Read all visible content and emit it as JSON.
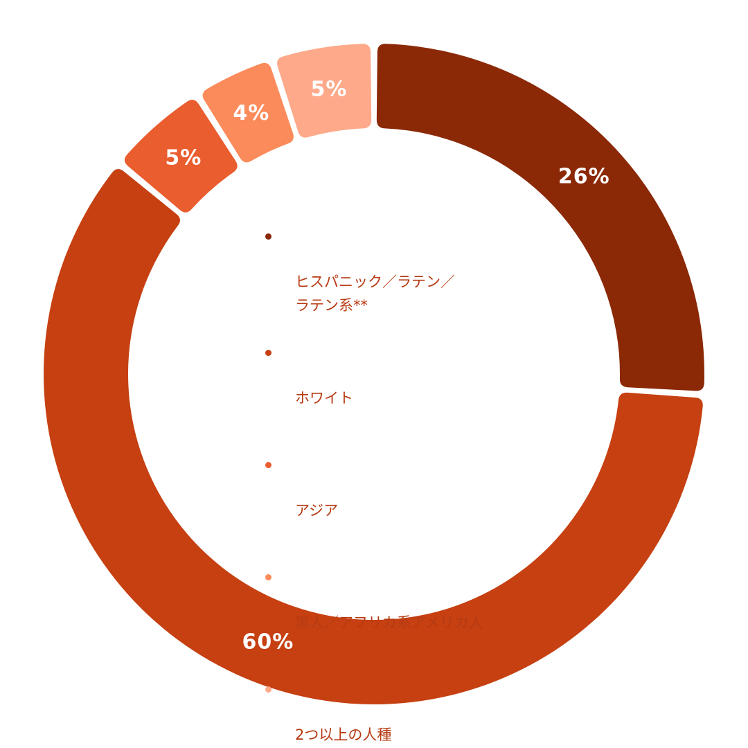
{
  "chart_data": {
    "type": "pie",
    "variant": "donut",
    "slices": [
      {
        "label": "ヒスパニック／ラテン／\nラテン系**",
        "value": 26,
        "value_label": "26%",
        "color": "#8b2907"
      },
      {
        "label": "ホワイト",
        "value": 60,
        "value_label": "60%",
        "color": "#c64012"
      },
      {
        "label": "アジア",
        "value": 5,
        "value_label": "5%",
        "color": "#ea5d2e"
      },
      {
        "label": "黒人／アフリカ系アメリカ人",
        "value": 4,
        "value_label": "4%",
        "color": "#fc8b5b"
      },
      {
        "label": "2つ以上の人種",
        "value": 5,
        "value_label": "5%",
        "color": "#fda98a"
      }
    ],
    "legend_position": "center"
  },
  "legend": {
    "text_color": "#b63a12",
    "items": [
      {
        "label": "ヒスパニック／ラテン／\nラテン系**",
        "color": "#8b2907"
      },
      {
        "label": "ホワイト",
        "color": "#c64012"
      },
      {
        "label": "アジア",
        "color": "#ea5d2e"
      },
      {
        "label": "黒人／アフリカ系アメリカ人",
        "color": "#fc8b5b"
      },
      {
        "label": "2つ以上の人種",
        "color": "#fda98a"
      }
    ]
  }
}
